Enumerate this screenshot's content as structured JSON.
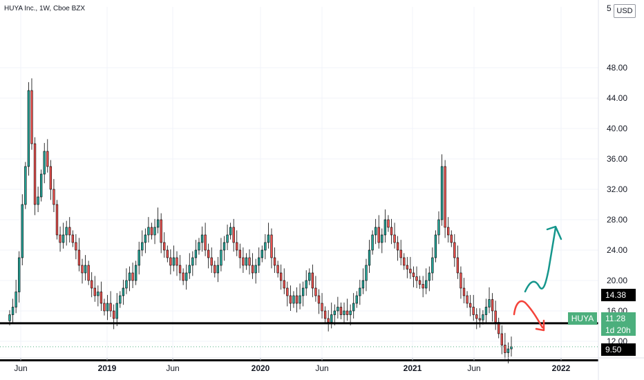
{
  "header": {
    "symbol_label": "HUYA Inc., 1W, Cboe BZX",
    "currency": "USD"
  },
  "price_axis": {
    "top_partial_label": "5"
  },
  "chart_data": {
    "type": "candlestick",
    "x_tick_labels": [
      "Jun",
      "2019",
      "Jun",
      "2020",
      "Jun",
      "2021",
      "Jun",
      "2022"
    ],
    "y_ticks": [
      "48.00",
      "44.00",
      "40.00",
      "36.00",
      "32.00",
      "28.00",
      "24.00",
      "20.00",
      "16.00",
      "12.00"
    ],
    "ylim": [
      9,
      52
    ],
    "grid": true,
    "horizontal_levels": [
      {
        "label": "14.38",
        "value": 14.38,
        "color": "#000000"
      },
      {
        "label": "9.50",
        "value": 9.5,
        "color": "#000000"
      }
    ],
    "last_price": {
      "symbol": "HUYA",
      "value": "11.28",
      "countdown": "1d 20h",
      "color": "#4caf7d"
    },
    "colors": {
      "up": "#26a69a",
      "down": "#ef5350",
      "grid": "#f0f3fa",
      "level_line": "#000000"
    },
    "closes": [
      15.5,
      16.5,
      18.5,
      23,
      30,
      35,
      45,
      38,
      30,
      31,
      34,
      37,
      35,
      32,
      30,
      26,
      25,
      26,
      27,
      26,
      25,
      24,
      22,
      21,
      22,
      20,
      19,
      18,
      18.5,
      17,
      16,
      17,
      16,
      15,
      17,
      18,
      19,
      20,
      21,
      20,
      22,
      24,
      25,
      26,
      27,
      26,
      27,
      28,
      25,
      24,
      23,
      22,
      23,
      22,
      21,
      20,
      21,
      22,
      23,
      24,
      25,
      26,
      24,
      23,
      22,
      21,
      22,
      24,
      25,
      26,
      27,
      25,
      24,
      23,
      22,
      23,
      22,
      21,
      22,
      23,
      24,
      25,
      26,
      23,
      22,
      21,
      20,
      19,
      18,
      17,
      18,
      17,
      18,
      19,
      20,
      21,
      19,
      18,
      17,
      16,
      15,
      14.5,
      15.5,
      16,
      16.5,
      15.5,
      16,
      15.5,
      16,
      17,
      18,
      19,
      20,
      22,
      24,
      26,
      27,
      25,
      26,
      28,
      27,
      26,
      25,
      24,
      23,
      22,
      21.5,
      21,
      20.5,
      20,
      19.5,
      19,
      20,
      21,
      23,
      26,
      28,
      35,
      27,
      26,
      25,
      23,
      21,
      19,
      18,
      17,
      16.5,
      15.5,
      15,
      14.8,
      15.5,
      16.5,
      17.5,
      16,
      14.5,
      13,
      11.5,
      10.5,
      11,
      11.28
    ],
    "scenario_arrows": [
      {
        "name": "bullish-scenario",
        "color": "#15968c"
      },
      {
        "name": "bearish-scenario",
        "color": "#f4433a"
      }
    ]
  }
}
